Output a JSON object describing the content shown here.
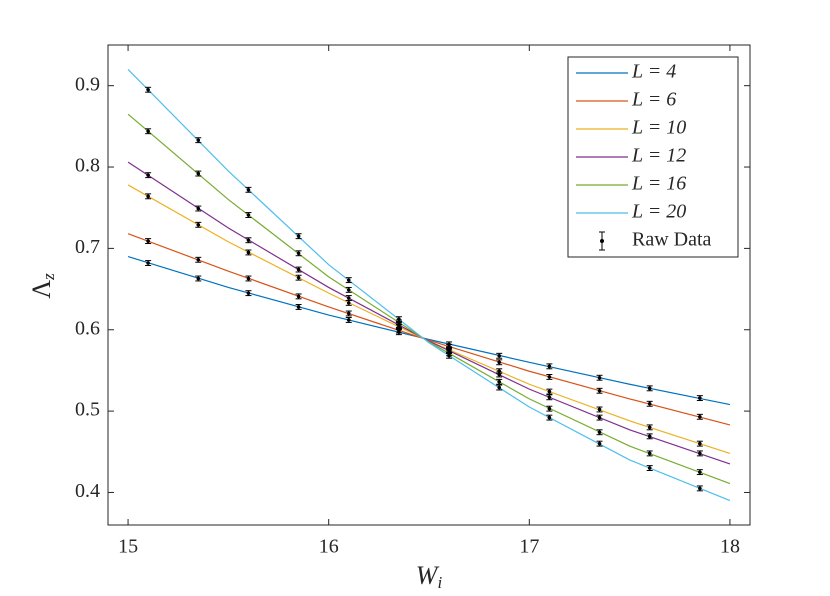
{
  "chart_data": {
    "type": "line",
    "xlabel": [
      "W",
      "i"
    ],
    "ylabel": [
      "Λ",
      "z"
    ],
    "x": [
      15,
      15.5,
      16,
      16.5,
      17,
      17.5,
      18
    ],
    "series": [
      {
        "name": "L = 4",
        "color": "#0072BD",
        "values": [
          0.69,
          0.652,
          0.618,
          0.588,
          0.56,
          0.533,
          0.508
        ]
      },
      {
        "name": "L = 6",
        "color": "#D95319",
        "values": [
          0.718,
          0.672,
          0.628,
          0.587,
          0.549,
          0.515,
          0.483
        ]
      },
      {
        "name": "L = 10",
        "color": "#EDB120",
        "values": [
          0.778,
          0.708,
          0.645,
          0.586,
          0.533,
          0.488,
          0.448
        ]
      },
      {
        "name": "L = 12",
        "color": "#7E2F8E",
        "values": [
          0.806,
          0.725,
          0.652,
          0.586,
          0.527,
          0.477,
          0.435
        ]
      },
      {
        "name": "L = 16",
        "color": "#77AC30",
        "values": [
          0.865,
          0.76,
          0.665,
          0.585,
          0.515,
          0.457,
          0.411
        ]
      },
      {
        "name": "L = 20",
        "color": "#4DBEEE",
        "values": [
          0.92,
          0.795,
          0.68,
          0.584,
          0.505,
          0.44,
          0.39
        ]
      }
    ],
    "raw_data": {
      "name": "Raw Data",
      "color": "#000000",
      "error": 0.003,
      "x": [
        15.1,
        15.35,
        15.6,
        15.85,
        16.1,
        16.35,
        16.6,
        16.85,
        17.1,
        17.35,
        17.6,
        17.85
      ],
      "values": [
        [
          0.682,
          0.663,
          0.645,
          0.628,
          0.612,
          0.597,
          0.582,
          0.568,
          0.555,
          0.541,
          0.528,
          0.516
        ],
        [
          0.709,
          0.686,
          0.663,
          0.641,
          0.62,
          0.599,
          0.579,
          0.56,
          0.542,
          0.525,
          0.509,
          0.493
        ],
        [
          0.764,
          0.729,
          0.695,
          0.664,
          0.633,
          0.604,
          0.575,
          0.549,
          0.524,
          0.502,
          0.48,
          0.46
        ],
        [
          0.79,
          0.749,
          0.71,
          0.674,
          0.639,
          0.606,
          0.574,
          0.545,
          0.517,
          0.492,
          0.469,
          0.448
        ],
        [
          0.844,
          0.792,
          0.741,
          0.694,
          0.649,
          0.609,
          0.571,
          0.536,
          0.503,
          0.474,
          0.448,
          0.425
        ],
        [
          0.895,
          0.833,
          0.772,
          0.715,
          0.661,
          0.613,
          0.568,
          0.529,
          0.492,
          0.46,
          0.43,
          0.405
        ]
      ]
    },
    "xlim": [
      14.9,
      18.1
    ],
    "ylim": [
      0.36,
      0.95
    ],
    "xticks": [
      15,
      16,
      17,
      18
    ],
    "yticks": [
      0.4,
      0.5,
      0.6,
      0.7,
      0.8,
      0.9
    ],
    "grid": false,
    "legend": "top-right"
  }
}
